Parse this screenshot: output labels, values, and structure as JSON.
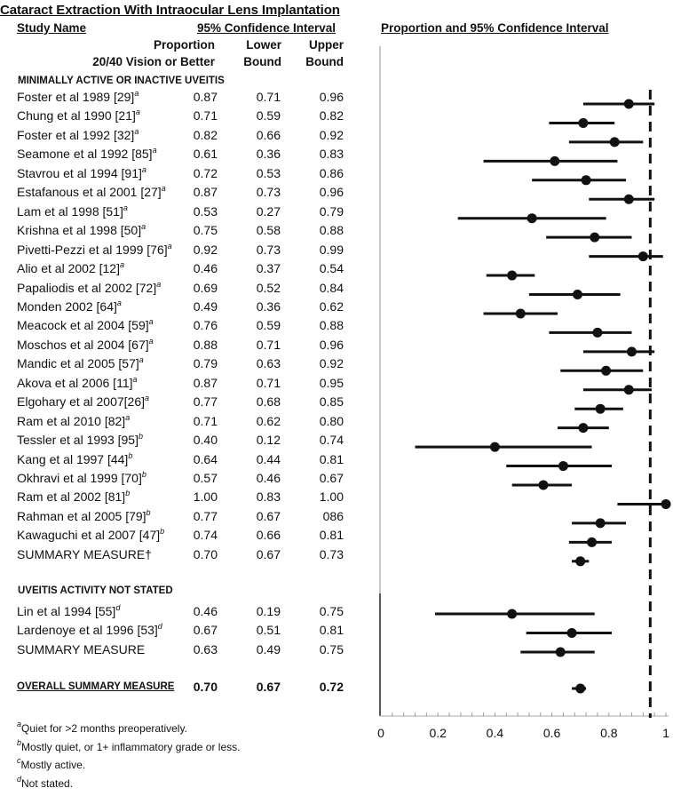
{
  "title": "Cataract Extraction With Intraocular Lens Implantation",
  "table": {
    "col_study": "Study Name",
    "col_ci_group": "95% Confidence Interval",
    "col_prop_line1": "Proportion",
    "col_prop_line2": "20/40 Vision or Better",
    "col_lower_line1": "Lower",
    "col_lower_line2": "Bound",
    "col_upper_line1": "Upper",
    "col_upper_line2": "Bound",
    "section1": "MINIMALLY ACTIVE OR INACTIVE UVEITIS",
    "section2": "UVEITIS ACTIVITY NOT STATED",
    "rows1": [
      {
        "name": "Foster et al 1989 [29]",
        "sup": "a",
        "p": "0.87",
        "l": "0.71",
        "u": "0.96"
      },
      {
        "name": "Chung et al 1990 [21]",
        "sup": "a",
        "p": "0.71",
        "l": "0.59",
        "u": "0.82"
      },
      {
        "name": "Foster et al 1992 [32]",
        "sup": "a",
        "p": "0.82",
        "l": "0.66",
        "u": "0.92"
      },
      {
        "name": "Seamone et al 1992 [85]",
        "sup": "a",
        "p": "0.61",
        "l": "0.36",
        "u": "0.83"
      },
      {
        "name": "Stavrou et al 1994 [91]",
        "sup": "a",
        "p": "0.72",
        "l": "0.53",
        "u": "0.86"
      },
      {
        "name": "Estafanous et al 2001 [27]",
        "sup": "a",
        "p": "0.87",
        "l": "0.73",
        "u": "0.96"
      },
      {
        "name": "Lam et al 1998 [51]",
        "sup": "a",
        "p": "0.53",
        "l": "0.27",
        "u": "0.79"
      },
      {
        "name": "Krishna et al 1998 [50]",
        "sup": "a",
        "p": "0.75",
        "l": "0.58",
        "u": "0.88"
      },
      {
        "name": "Pivetti-Pezzi et al 1999 [76]",
        "sup": "a",
        "p": "0.92",
        "l": "0.73",
        "u": "0.99"
      },
      {
        "name": "Alio et al 2002 [12]",
        "sup": "a",
        "p": "0.46",
        "l": "0.37",
        "u": "0.54"
      },
      {
        "name": "Papaliodis et al 2002 [72]",
        "sup": "a",
        "p": "0.69",
        "l": "0.52",
        "u": "0.84"
      },
      {
        "name": "Monden 2002 [64]",
        "sup": "a",
        "p": "0.49",
        "l": "0.36",
        "u": "0.62"
      },
      {
        "name": "Meacock et al 2004 [59]",
        "sup": "a",
        "p": "0.76",
        "l": "0.59",
        "u": "0.88"
      },
      {
        "name": "Moschos et al 2004 [67]",
        "sup": "a",
        "p": "0.88",
        "l": "0.71",
        "u": "0.96"
      },
      {
        "name": "Mandic et al 2005 [57]",
        "sup": "a",
        "p": "0.79",
        "l": "0.63",
        "u": "0.92"
      },
      {
        "name": "Akova et al 2006 [11]",
        "sup": "a",
        "p": "0.87",
        "l": "0.71",
        "u": "0.95"
      },
      {
        "name": "Elgohary et al 2007[26]",
        "sup": "a",
        "p": "0.77",
        "l": "0.68",
        "u": "0.85"
      },
      {
        "name": "Ram et al 2010 [82]",
        "sup": "a",
        "p": "0.71",
        "l": "0.62",
        "u": "0.80"
      },
      {
        "name": "Tessler et al 1993 [95]",
        "sup": "b",
        "p": "0.40",
        "l": "0.12",
        "u": "0.74"
      },
      {
        "name": "Kang et al 1997 [44]",
        "sup": "b",
        "p": "0.64",
        "l": "0.44",
        "u": "0.81"
      },
      {
        "name": "Okhravi et al 1999 [70]",
        "sup": "b",
        "p": "0.57",
        "l": "0.46",
        "u": "0.67"
      },
      {
        "name": "Ram et al 2002 [81]",
        "sup": "b",
        "p": "1.00",
        "l": "0.83",
        "u": "1.00"
      },
      {
        "name": "Rahman et al 2005 [79]",
        "sup": "b",
        "p": "0.77",
        "l": "0.67",
        "u": "086"
      },
      {
        "name": "Kawaguchi et al 2007 [47]",
        "sup": "b",
        "p": "0.74",
        "l": "0.66",
        "u": "0.81"
      },
      {
        "name": "SUMMARY MEASURE†",
        "sup": "",
        "p": "0.70",
        "l": "0.67",
        "u": "0.73"
      }
    ],
    "rows2": [
      {
        "name": "Lin et al 1994 [55]",
        "sup": "d",
        "p": "0.46",
        "l": "0.19",
        "u": "0.75"
      },
      {
        "name": "Lardenoye et al 1996 [53]",
        "sup": "d",
        "p": "0.67",
        "l": "0.51",
        "u": "0.81"
      },
      {
        "name": "SUMMARY MEASURE",
        "sup": "",
        "p": "0.63",
        "l": "0.49",
        "u": "0.75"
      }
    ],
    "overall": {
      "name": "OVERALL SUMMARY MEASURE",
      "p": "0.70",
      "l": "0.67",
      "u": "0.72"
    }
  },
  "footnotes": [
    {
      "sup": "a",
      "text": "Quiet for >2 months preoperatively."
    },
    {
      "sup": "b",
      "text": "Mostly quiet, or 1+ inflammatory grade or less."
    },
    {
      "sup": "c",
      "text": "Mostly active."
    },
    {
      "sup": "d",
      "text": "Not stated."
    }
  ],
  "chart_data": {
    "type": "forest",
    "title": "Proportion and 95% Confidence Interval",
    "xlim": [
      0,
      1
    ],
    "x_ticks": [
      "0",
      "0.2",
      "0.4",
      "0.6",
      "0.8",
      "1"
    ],
    "minor_tick_step": 0.04,
    "reference_line": {
      "value": 0.945,
      "style": "dashed"
    },
    "points": [
      {
        "group": 1,
        "label": "Foster et al 1989",
        "est": 0.87,
        "lo": 0.71,
        "hi": 0.96
      },
      {
        "group": 1,
        "label": "Chung et al 1990",
        "est": 0.71,
        "lo": 0.59,
        "hi": 0.82
      },
      {
        "group": 1,
        "label": "Foster et al 1992",
        "est": 0.82,
        "lo": 0.66,
        "hi": 0.92
      },
      {
        "group": 1,
        "label": "Seamone et al 1992",
        "est": 0.61,
        "lo": 0.36,
        "hi": 0.83
      },
      {
        "group": 1,
        "label": "Stavrou et al 1994",
        "est": 0.72,
        "lo": 0.53,
        "hi": 0.86
      },
      {
        "group": 1,
        "label": "Estafanous et al 2001",
        "est": 0.87,
        "lo": 0.73,
        "hi": 0.96
      },
      {
        "group": 1,
        "label": "Lam et al 1998",
        "est": 0.53,
        "lo": 0.27,
        "hi": 0.79
      },
      {
        "group": 1,
        "label": "Krishna et al 1998",
        "est": 0.75,
        "lo": 0.58,
        "hi": 0.88
      },
      {
        "group": 1,
        "label": "Pivetti-Pezzi et al 1999",
        "est": 0.92,
        "lo": 0.73,
        "hi": 0.99
      },
      {
        "group": 1,
        "label": "Alio et al 2002",
        "est": 0.46,
        "lo": 0.37,
        "hi": 0.54
      },
      {
        "group": 1,
        "label": "Papaliodis et al 2002",
        "est": 0.69,
        "lo": 0.52,
        "hi": 0.84
      },
      {
        "group": 1,
        "label": "Monden 2002",
        "est": 0.49,
        "lo": 0.36,
        "hi": 0.62
      },
      {
        "group": 1,
        "label": "Meacock et al 2004",
        "est": 0.76,
        "lo": 0.59,
        "hi": 0.88
      },
      {
        "group": 1,
        "label": "Moschos et al 2004",
        "est": 0.88,
        "lo": 0.71,
        "hi": 0.96
      },
      {
        "group": 1,
        "label": "Mandic et al 2005",
        "est": 0.79,
        "lo": 0.63,
        "hi": 0.92
      },
      {
        "group": 1,
        "label": "Akova et al 2006",
        "est": 0.87,
        "lo": 0.71,
        "hi": 0.95
      },
      {
        "group": 1,
        "label": "Elgohary et al 2007",
        "est": 0.77,
        "lo": 0.68,
        "hi": 0.85
      },
      {
        "group": 1,
        "label": "Ram et al 2010",
        "est": 0.71,
        "lo": 0.62,
        "hi": 0.8
      },
      {
        "group": 1,
        "label": "Tessler et al 1993",
        "est": 0.4,
        "lo": 0.12,
        "hi": 0.74
      },
      {
        "group": 1,
        "label": "Kang et al 1997",
        "est": 0.64,
        "lo": 0.44,
        "hi": 0.81
      },
      {
        "group": 1,
        "label": "Okhravi et al 1999",
        "est": 0.57,
        "lo": 0.46,
        "hi": 0.67
      },
      {
        "group": 1,
        "label": "Ram et al 2002",
        "est": 1.0,
        "lo": 0.83,
        "hi": 1.0
      },
      {
        "group": 1,
        "label": "Rahman et al 2005",
        "est": 0.77,
        "lo": 0.67,
        "hi": 0.86
      },
      {
        "group": 1,
        "label": "Kawaguchi et al 2007",
        "est": 0.74,
        "lo": 0.66,
        "hi": 0.81
      },
      {
        "group": 1,
        "label": "Summary measure",
        "est": 0.7,
        "lo": 0.67,
        "hi": 0.73
      },
      {
        "group": 2,
        "label": "Lin et al 1994",
        "est": 0.46,
        "lo": 0.19,
        "hi": 0.75
      },
      {
        "group": 2,
        "label": "Lardenoye et al 1996",
        "est": 0.67,
        "lo": 0.51,
        "hi": 0.81
      },
      {
        "group": 2,
        "label": "Summary measure",
        "est": 0.63,
        "lo": 0.49,
        "hi": 0.75
      },
      {
        "group": 3,
        "label": "Overall summary measure",
        "est": 0.7,
        "lo": 0.67,
        "hi": 0.72
      }
    ]
  }
}
